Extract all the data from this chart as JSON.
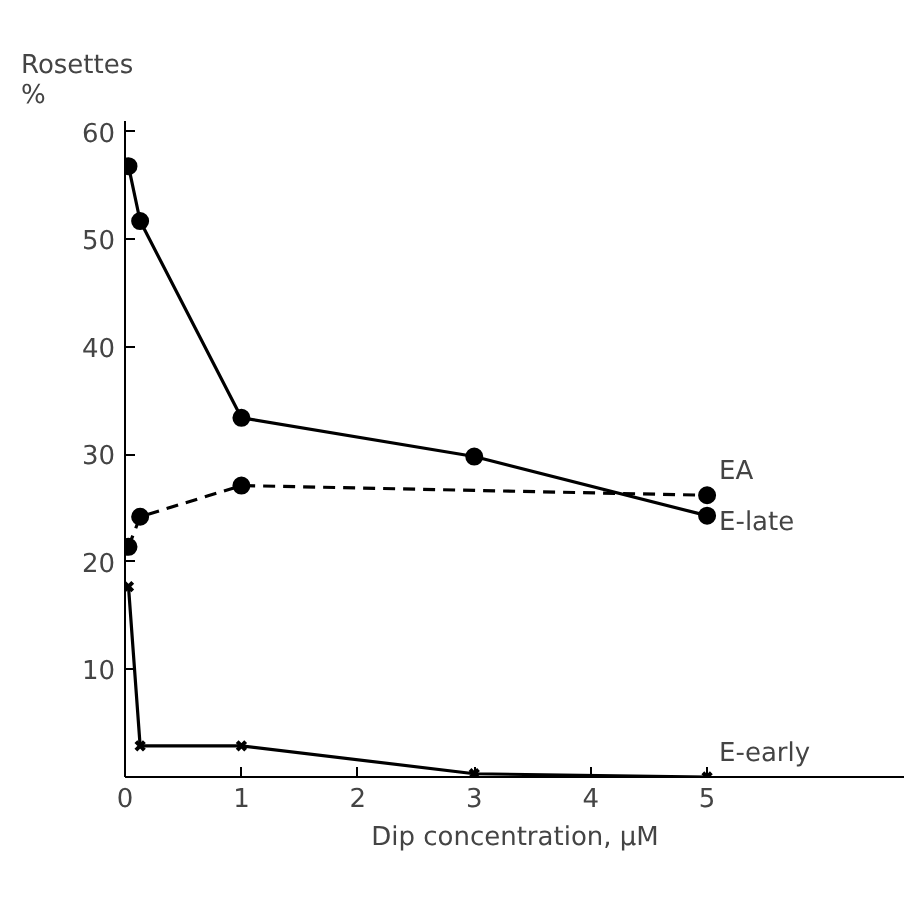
{
  "chart_data": {
    "type": "line",
    "ylabel": "Rosettes\n%",
    "xlabel": "Dip concentration, µM",
    "xlim": [
      0,
      6.7
    ],
    "ylim": [
      0,
      61
    ],
    "xticks": [
      0,
      1,
      2,
      3,
      4,
      5
    ],
    "yticks": [
      10,
      20,
      30,
      40,
      50,
      60
    ],
    "grid": false,
    "series": [
      {
        "name": "EA",
        "color": "#000000",
        "line_style": "dashed",
        "marker": "circle",
        "x": [
          0.03,
          0.13,
          1,
          5
        ],
        "values": [
          21.4,
          24.2,
          27.1,
          26.2
        ]
      },
      {
        "name": "E-late",
        "color": "#000000",
        "line_style": "solid",
        "marker": "circle",
        "x": [
          0.03,
          0.13,
          1,
          3,
          5
        ],
        "values": [
          56.8,
          51.7,
          33.4,
          29.8,
          24.3
        ]
      },
      {
        "name": "E-early",
        "color": "#000000",
        "line_style": "solid",
        "marker": "cross",
        "x": [
          0.03,
          0.13,
          1,
          3,
          5
        ],
        "values": [
          17.7,
          2.9,
          2.9,
          0.3,
          0
        ]
      }
    ]
  }
}
